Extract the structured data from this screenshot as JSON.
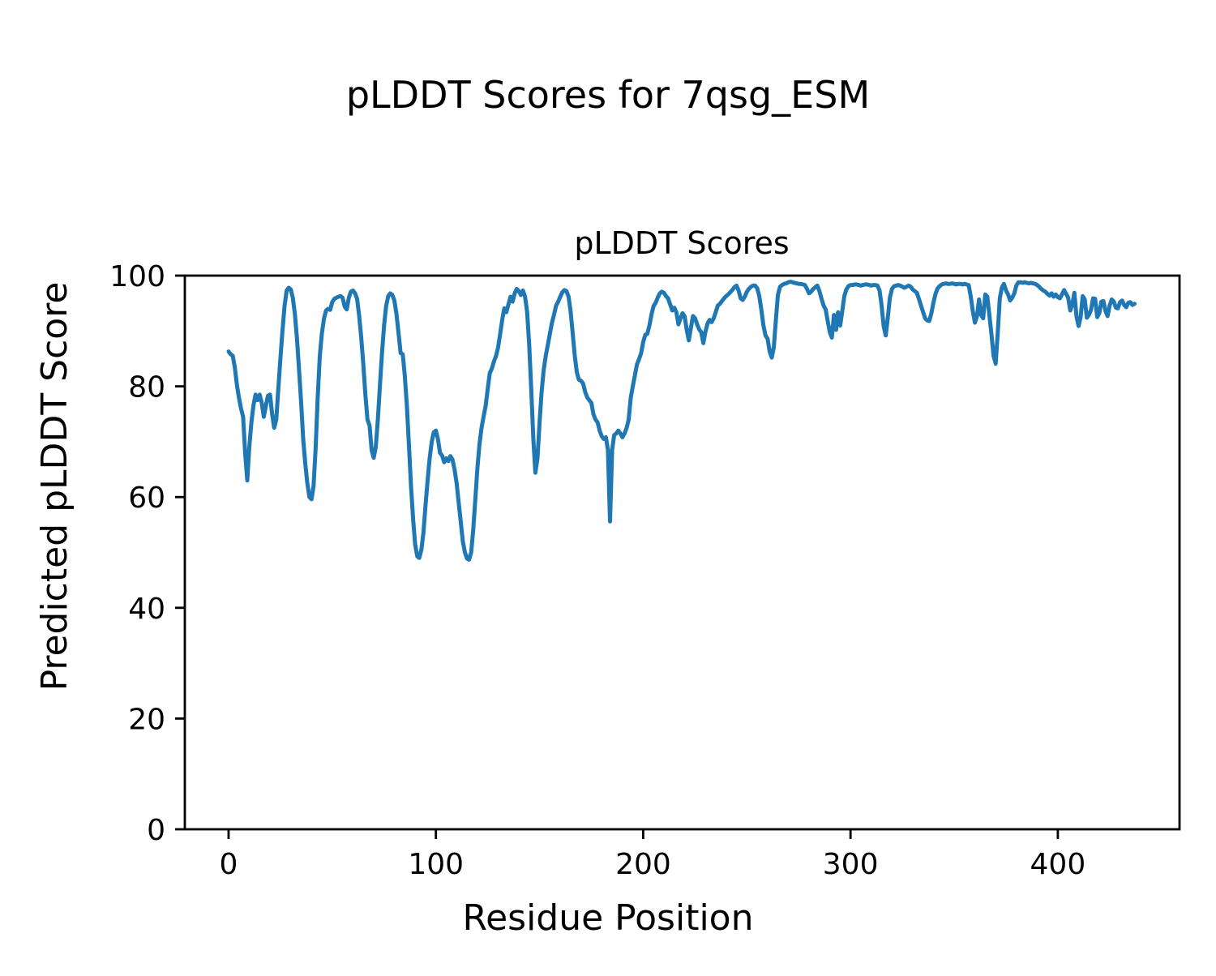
{
  "figure": {
    "suptitle": "pLDDT Scores for 7qsg_ESM",
    "axes_title": "pLDDT Scores",
    "xlabel": "Residue Position",
    "ylabel": "Predicted pLDDT Score"
  },
  "chart_data": {
    "type": "line",
    "title": "pLDDT Scores",
    "suptitle": "pLDDT Scores for 7qsg_ESM",
    "xlabel": "Residue Position",
    "ylabel": "Predicted pLDDT Score",
    "line_color": "#1f77b4",
    "grid": false,
    "legend": "none",
    "x_ticks": [
      0,
      100,
      200,
      300,
      400
    ],
    "y_ticks": [
      0,
      20,
      40,
      60,
      80,
      100
    ],
    "xlim": [
      -21.1,
      458.7
    ],
    "ylim": [
      0,
      100
    ],
    "series_name": "pLDDT",
    "x_start": 0,
    "x_step": 1,
    "values": [
      86.3,
      85.8,
      85.5,
      83.5,
      80.3,
      78.0,
      76.0,
      74.5,
      68.0,
      63.0,
      69.0,
      73.5,
      76.5,
      78.5,
      77.5,
      78.5,
      77.0,
      74.5,
      76.5,
      78.3,
      78.5,
      75.0,
      72.5,
      74.0,
      79.5,
      85.0,
      90.0,
      94.5,
      97.3,
      97.8,
      97.5,
      96.0,
      93.0,
      88.5,
      83.0,
      77.0,
      70.5,
      66.0,
      62.5,
      60.0,
      59.6,
      62.0,
      69.0,
      78.0,
      85.5,
      89.5,
      92.2,
      93.7,
      94.0,
      93.8,
      95.2,
      95.8,
      96.0,
      96.2,
      96.3,
      96.0,
      94.4,
      93.9,
      96.0,
      97.1,
      97.3,
      96.8,
      95.8,
      92.7,
      88.8,
      83.9,
      78.5,
      74.0,
      72.9,
      68.5,
      67.1,
      69.0,
      74.0,
      80.0,
      86.0,
      91.0,
      94.5,
      96.3,
      96.8,
      96.5,
      95.5,
      93.0,
      89.5,
      86.0,
      85.8,
      82.0,
      76.5,
      69.5,
      62.0,
      56.0,
      51.5,
      49.3,
      49.0,
      50.5,
      53.5,
      58.5,
      63.0,
      67.0,
      70.0,
      71.7,
      72.0,
      70.5,
      68.0,
      67.5,
      66.3,
      67.0,
      66.5,
      67.4,
      66.8,
      65.0,
      62.5,
      59.0,
      55.5,
      52.0,
      50.0,
      48.9,
      48.7,
      50.0,
      54.0,
      59.5,
      65.0,
      69.5,
      72.5,
      74.5,
      76.5,
      79.5,
      82.4,
      83.2,
      84.5,
      85.5,
      87.0,
      89.5,
      92.0,
      94.1,
      93.4,
      94.8,
      96.2,
      95.3,
      96.8,
      97.6,
      97.2,
      96.5,
      97.3,
      96.2,
      93.5,
      87.5,
      79.5,
      70.5,
      64.4,
      67.0,
      73.5,
      79.0,
      83.0,
      85.5,
      87.5,
      89.5,
      91.5,
      93.0,
      94.6,
      95.3,
      96.2,
      97.0,
      97.4,
      97.2,
      96.2,
      93.5,
      89.5,
      85.5,
      82.5,
      81.2,
      81.0,
      80.5,
      79.0,
      78.0,
      77.5,
      77.0,
      75.0,
      74.0,
      73.5,
      72.0,
      71.0,
      70.5,
      70.8,
      68.5,
      55.6,
      68.5,
      71.2,
      71.5,
      72.0,
      71.5,
      70.8,
      71.5,
      72.5,
      74.0,
      78.0,
      80.0,
      82.0,
      84.0,
      84.9,
      86.0,
      88.0,
      89.3,
      89.5,
      91.0,
      93.0,
      94.5,
      95.1,
      96.0,
      96.8,
      97.1,
      96.9,
      96.3,
      95.9,
      94.8,
      93.7,
      94.2,
      93.4,
      91.2,
      92.3,
      93.2,
      92.6,
      90.2,
      88.3,
      90.5,
      92.7,
      92.3,
      91.2,
      90.3,
      89.8,
      87.8,
      89.8,
      91.3,
      92.0,
      91.6,
      92.3,
      93.4,
      94.6,
      94.9,
      95.4,
      95.9,
      96.3,
      96.6,
      97.0,
      97.4,
      97.9,
      98.2,
      97.3,
      95.9,
      95.6,
      96.2,
      97.1,
      97.6,
      98.0,
      98.2,
      98.2,
      97.7,
      96.3,
      93.8,
      91.0,
      89.2,
      88.6,
      86.3,
      85.2,
      87.0,
      92.0,
      96.5,
      98.0,
      98.3,
      98.5,
      98.6,
      98.8,
      98.9,
      98.8,
      98.7,
      98.6,
      98.5,
      98.5,
      98.4,
      98.3,
      97.6,
      96.8,
      97.1,
      97.6,
      97.9,
      98.2,
      97.2,
      95.8,
      94.6,
      93.9,
      91.8,
      89.8,
      88.8,
      92.9,
      90.2,
      93.4,
      91.0,
      93.5,
      96.3,
      97.5,
      98.1,
      98.3,
      98.3,
      98.4,
      98.4,
      98.3,
      98.2,
      98.3,
      98.4,
      98.4,
      98.3,
      98.2,
      98.3,
      98.3,
      98.2,
      97.3,
      94.6,
      90.8,
      89.2,
      92.5,
      96.0,
      97.6,
      98.1,
      98.2,
      98.3,
      98.2,
      98.0,
      97.8,
      98.0,
      98.2,
      98.0,
      97.5,
      97.2,
      96.9,
      95.8,
      94.6,
      93.4,
      92.3,
      91.9,
      91.8,
      93.2,
      95.1,
      96.7,
      97.7,
      98.1,
      98.4,
      98.5,
      98.6,
      98.5,
      98.5,
      98.6,
      98.5,
      98.4,
      98.5,
      98.5,
      98.4,
      98.5,
      98.4,
      98.3,
      96.2,
      93.6,
      91.5,
      92.7,
      95.7,
      92.9,
      92.3,
      96.6,
      96.2,
      92.8,
      89.3,
      85.5,
      84.1,
      89.5,
      95.9,
      97.8,
      98.5,
      97.3,
      96.6,
      95.5,
      96.0,
      96.8,
      98.2,
      98.8,
      98.8,
      98.7,
      98.8,
      98.7,
      98.6,
      98.7,
      98.6,
      98.5,
      98.3,
      98.0,
      97.6,
      97.3,
      97.1,
      96.7,
      96.4,
      96.8,
      96.2,
      96.6,
      96.1,
      95.9,
      96.6,
      97.4,
      96.7,
      96.0,
      93.7,
      94.8,
      96.9,
      92.6,
      90.9,
      92.5,
      96.3,
      95.7,
      92.4,
      92.9,
      93.8,
      95.9,
      95.8,
      92.5,
      93.2,
      95.3,
      95.4,
      93.6,
      92.7,
      94.6,
      95.7,
      95.3,
      94.2,
      94.1,
      95.2,
      95.5,
      94.7,
      94.3,
      95.1,
      95.2,
      94.7,
      94.9
    ]
  }
}
